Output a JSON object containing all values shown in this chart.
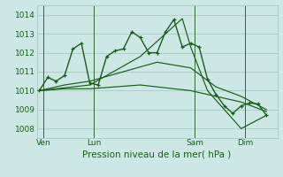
{
  "title": "Pression niveau de la mer( hPa )",
  "bg_color": "#cde8e4",
  "grid_color": "#a8c8c4",
  "line_color": "#1a5c1a",
  "ylim": [
    1007.5,
    1014.5
  ],
  "yticks": [
    1008,
    1009,
    1010,
    1011,
    1012,
    1013,
    1014
  ],
  "xlim": [
    -0.3,
    28.3
  ],
  "day_labels": [
    "Ven",
    "Lun",
    "Sam",
    "Dim"
  ],
  "day_positions": [
    0.5,
    6.5,
    18.5,
    24.5
  ],
  "vline_positions": [
    0.5,
    6.5,
    18.5,
    24.5
  ],
  "series": [
    {
      "x": [
        0,
        1,
        2,
        3,
        4,
        5,
        6,
        7,
        8,
        9,
        10,
        11,
        12,
        13,
        14,
        15,
        16,
        17,
        18,
        19,
        20,
        21,
        22,
        23,
        24,
        25,
        26,
        27
      ],
      "y": [
        1010.0,
        1010.7,
        1010.5,
        1010.8,
        1012.2,
        1012.5,
        1010.4,
        1010.3,
        1011.8,
        1012.1,
        1012.2,
        1013.1,
        1012.8,
        1012.0,
        1012.0,
        1013.1,
        1013.75,
        1012.3,
        1012.5,
        1012.3,
        1010.6,
        1009.8,
        1009.2,
        1008.8,
        1009.2,
        1009.35,
        1009.3,
        1008.7
      ],
      "marker": true
    },
    {
      "x": [
        0,
        6,
        12,
        17,
        18,
        20,
        22,
        24,
        27
      ],
      "y": [
        1010.0,
        1010.3,
        1011.8,
        1013.8,
        1012.3,
        1010.0,
        1009.0,
        1008.0,
        1008.7
      ],
      "marker": false
    },
    {
      "x": [
        0,
        3,
        6,
        10,
        14,
        18,
        21,
        24,
        27
      ],
      "y": [
        1010.0,
        1010.3,
        1010.5,
        1011.0,
        1011.5,
        1011.2,
        1010.2,
        1009.7,
        1009.0
      ],
      "marker": false
    },
    {
      "x": [
        0,
        3,
        6,
        12,
        18,
        22,
        24,
        27
      ],
      "y": [
        1010.0,
        1010.1,
        1010.1,
        1010.3,
        1010.0,
        1009.6,
        1009.4,
        1008.9
      ],
      "marker": false
    }
  ]
}
